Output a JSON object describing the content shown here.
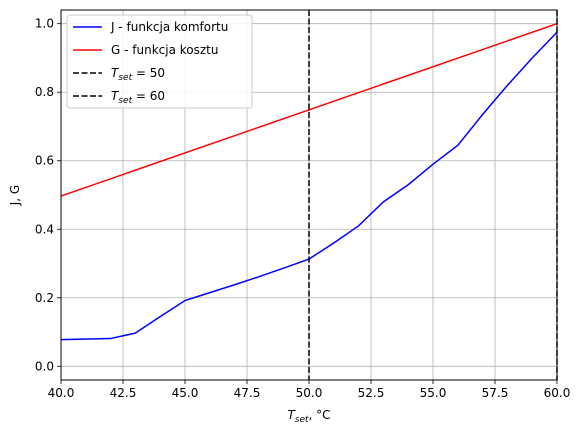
{
  "chart_data": {
    "type": "line",
    "xlim": [
      40,
      60
    ],
    "ylim": [
      -0.04,
      1.04
    ],
    "x_ticks": [
      40.0,
      42.5,
      45.0,
      47.5,
      50.0,
      52.5,
      55.0,
      57.5,
      60.0
    ],
    "x_tick_labels": [
      "40.0",
      "42.5",
      "45.0",
      "47.5",
      "50.0",
      "52.5",
      "55.0",
      "57.5",
      "60.0"
    ],
    "y_ticks": [
      0.0,
      0.2,
      0.4,
      0.6,
      0.8,
      1.0
    ],
    "y_tick_labels": [
      "0.0",
      "0.2",
      "0.4",
      "0.6",
      "0.8",
      "1.0"
    ],
    "xlabel": {
      "main": "T",
      "sub": "set",
      "rest": ", °C"
    },
    "ylabel": "J, G",
    "grid": true,
    "legend_position": "top-left",
    "series": [
      {
        "name": "J - funkcja komfortu",
        "color": "#0000ff",
        "x": [
          40,
          42,
          43,
          44,
          45,
          46,
          47,
          48,
          49,
          50,
          51,
          52,
          53,
          54,
          55,
          56,
          57,
          58,
          59,
          60
        ],
        "y": [
          0.078,
          0.081,
          0.097,
          0.145,
          0.192,
          0.215,
          0.238,
          0.262,
          0.287,
          0.313,
          0.36,
          0.41,
          0.48,
          0.53,
          0.59,
          0.645,
          0.735,
          0.82,
          0.9,
          0.975
        ]
      },
      {
        "name": "G - funkcja kosztu",
        "color": "#ff0000",
        "x": [
          40,
          60
        ],
        "y": [
          0.497,
          1.0
        ]
      }
    ],
    "vlines": [
      {
        "x": 50,
        "color": "#000000",
        "style": "dashed",
        "label": {
          "main": "T",
          "sub": "set",
          "rest": " = 50"
        }
      },
      {
        "x": 60,
        "color": "#000000",
        "style": "dashed",
        "label": {
          "main": "T",
          "sub": "set",
          "rest": " = 60"
        }
      }
    ]
  }
}
